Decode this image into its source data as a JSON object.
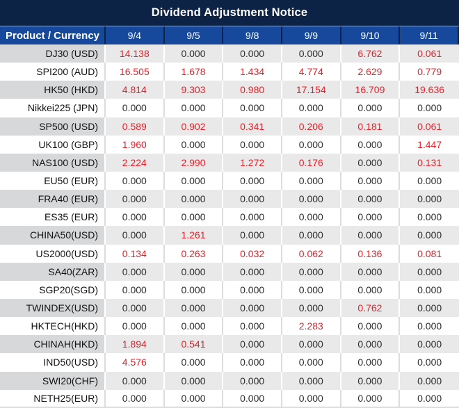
{
  "title": "Dividend Adjustment Notice",
  "header": {
    "product_label": "Product / Currency",
    "dates": [
      "9/4",
      "9/5",
      "9/8",
      "9/9",
      "9/10",
      "9/11"
    ]
  },
  "rows": [
    {
      "product": "DJ30 (USD)",
      "values": [
        "14.138",
        "0.000",
        "0.000",
        "0.000",
        "6.762",
        "0.061"
      ]
    },
    {
      "product": "SPI200 (AUD)",
      "values": [
        "16.505",
        "1.678",
        "1.434",
        "4.774",
        "2.629",
        "0.779"
      ]
    },
    {
      "product": "HK50 (HKD)",
      "values": [
        "4.814",
        "9.303",
        "0.980",
        "17.154",
        "16.709",
        "19.636"
      ]
    },
    {
      "product": "Nikkei225 (JPN)",
      "values": [
        "0.000",
        "0.000",
        "0.000",
        "0.000",
        "0.000",
        "0.000"
      ]
    },
    {
      "product": "SP500 (USD)",
      "values": [
        "0.589",
        "0.902",
        "0.341",
        "0.206",
        "0.181",
        "0.061"
      ]
    },
    {
      "product": "UK100 (GBP)",
      "values": [
        "1.960",
        "0.000",
        "0.000",
        "0.000",
        "0.000",
        "1.447"
      ]
    },
    {
      "product": "NAS100 (USD)",
      "values": [
        "2.224",
        "2.990",
        "1.272",
        "0.176",
        "0.000",
        "0.131"
      ]
    },
    {
      "product": "EU50 (EUR)",
      "values": [
        "0.000",
        "0.000",
        "0.000",
        "0.000",
        "0.000",
        "0.000"
      ]
    },
    {
      "product": "FRA40 (EUR)",
      "values": [
        "0.000",
        "0.000",
        "0.000",
        "0.000",
        "0.000",
        "0.000"
      ]
    },
    {
      "product": "ES35 (EUR)",
      "values": [
        "0.000",
        "0.000",
        "0.000",
        "0.000",
        "0.000",
        "0.000"
      ]
    },
    {
      "product": "CHINA50(USD)",
      "values": [
        "0.000",
        "1.261",
        "0.000",
        "0.000",
        "0.000",
        "0.000"
      ]
    },
    {
      "product": "US2000(USD)",
      "values": [
        "0.134",
        "0.263",
        "0.032",
        "0.062",
        "0.136",
        "0.081"
      ]
    },
    {
      "product": "SA40(ZAR)",
      "values": [
        "0.000",
        "0.000",
        "0.000",
        "0.000",
        "0.000",
        "0.000"
      ]
    },
    {
      "product": "SGP20(SGD)",
      "values": [
        "0.000",
        "0.000",
        "0.000",
        "0.000",
        "0.000",
        "0.000"
      ]
    },
    {
      "product": "TWINDEX(USD)",
      "values": [
        "0.000",
        "0.000",
        "0.000",
        "0.000",
        "0.762",
        "0.000"
      ]
    },
    {
      "product": "HKTECH(HKD)",
      "values": [
        "0.000",
        "0.000",
        "0.000",
        "2.283",
        "0.000",
        "0.000"
      ]
    },
    {
      "product": "CHINAH(HKD)",
      "values": [
        "1.894",
        "0.541",
        "0.000",
        "0.000",
        "0.000",
        "0.000"
      ]
    },
    {
      "product": "IND50(USD)",
      "values": [
        "4.576",
        "0.000",
        "0.000",
        "0.000",
        "0.000",
        "0.000"
      ]
    },
    {
      "product": "SWI20(CHF)",
      "values": [
        "0.000",
        "0.000",
        "0.000",
        "0.000",
        "0.000",
        "0.000"
      ]
    },
    {
      "product": "NETH25(EUR)",
      "values": [
        "0.000",
        "0.000",
        "0.000",
        "0.000",
        "0.000",
        "0.000"
      ]
    }
  ],
  "colors": {
    "title_bg": "#0d2345",
    "header_bg": "#16489c",
    "header_text": "#ffffff",
    "stripe_product_cell": "#d6d8da",
    "stripe_value_cell": "#e9e9e9",
    "white_row_divider": "#dcdcdc",
    "nonzero_value_red": "#ee1c25",
    "zero_value_text": "#2d2d2d"
  }
}
